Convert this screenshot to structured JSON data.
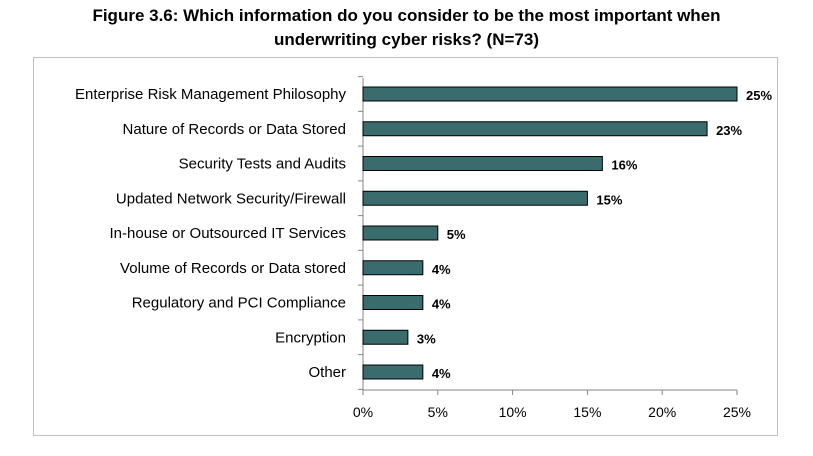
{
  "title_line1": "Figure 3.6: Which information do you consider to be the most important when",
  "title_line2": "underwriting cyber risks? (N=73)",
  "chart_data": {
    "type": "bar",
    "orientation": "horizontal",
    "title": "Figure 3.6: Which information do you consider to be the most important when underwriting cyber risks? (N=73)",
    "categories": [
      "Enterprise Risk Management Philosophy",
      "Nature of Records or Data Stored",
      "Security Tests and Audits",
      "Updated Network Security/Firewall",
      "In-house or Outsourced IT Services",
      "Volume of Records or Data stored",
      "Regulatory and PCI Compliance",
      "Encryption",
      "Other"
    ],
    "values": [
      25,
      23,
      16,
      15,
      5,
      4,
      4,
      3,
      4
    ],
    "value_labels": [
      "25%",
      "23%",
      "16%",
      "15%",
      "5%",
      "4%",
      "4%",
      "3%",
      "4%"
    ],
    "xlim": [
      0,
      25
    ],
    "xticks": [
      0,
      5,
      10,
      15,
      20,
      25
    ],
    "xtick_labels": [
      "0%",
      "5%",
      "10%",
      "15%",
      "20%",
      "25%"
    ],
    "xlabel": "",
    "ylabel": "",
    "grid": false,
    "legend": "none",
    "bar_color": "#3a6b6d",
    "bar_edge_color": "#000000"
  }
}
